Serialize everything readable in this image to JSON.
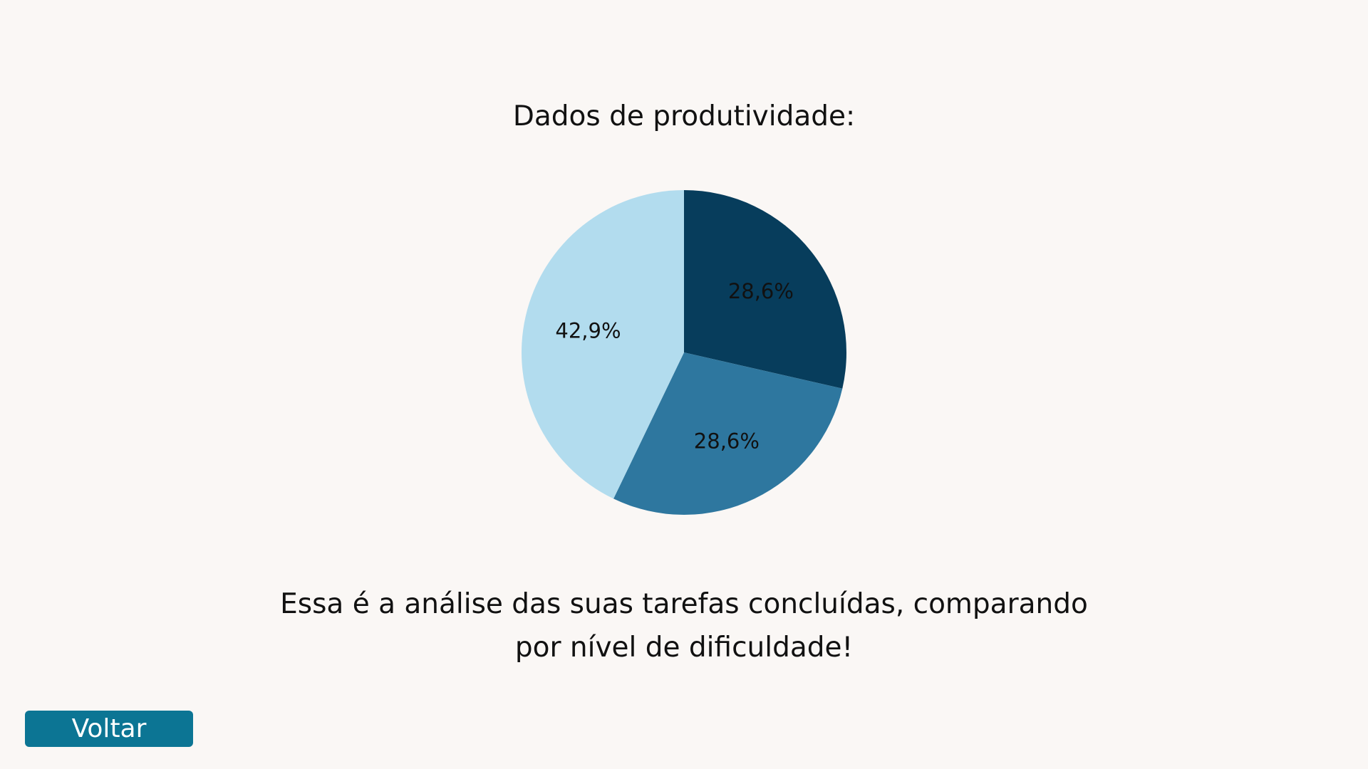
{
  "header": {
    "title": "Dados de produtividade:"
  },
  "chart_data": {
    "type": "pie",
    "title": "Dados de produtividade:",
    "slices": [
      {
        "value": 28.6,
        "label": "28,6%",
        "color": "#073d5c"
      },
      {
        "value": 28.6,
        "label": "28,6%",
        "color": "#2e779f"
      },
      {
        "value": 42.9,
        "label": "42,9%",
        "color": "#b2dcee"
      }
    ],
    "start_angle": "12 o'clock",
    "direction": "clockwise",
    "legend": "none"
  },
  "description": {
    "line1": "Essa é a análise das suas tarefas concluídas, comparando",
    "line2": "por nível de dificuldade!"
  },
  "actions": {
    "back_label": "Voltar",
    "back_color": "#0c7594"
  },
  "colors": {
    "background": "#faf7f5",
    "text": "#111111"
  }
}
